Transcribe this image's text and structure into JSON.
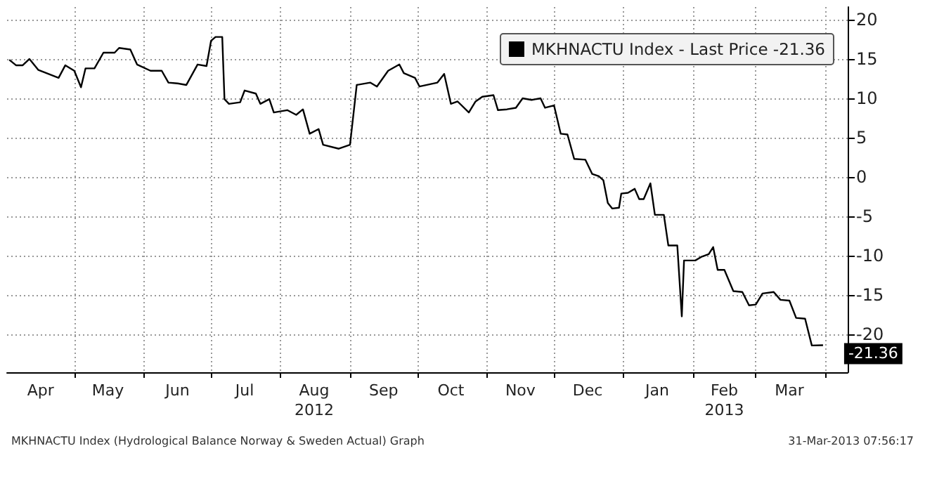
{
  "chart_data": {
    "type": "line",
    "x": [
      "2012-04-02",
      "2012-04-05",
      "2012-04-08",
      "2012-04-11",
      "2012-04-15",
      "2012-04-24",
      "2012-04-27",
      "2012-05-01",
      "2012-05-04",
      "2012-05-06",
      "2012-05-10",
      "2012-05-14",
      "2012-05-19",
      "2012-05-21",
      "2012-05-26",
      "2012-05-29",
      "2012-06-04",
      "2012-06-09",
      "2012-06-12",
      "2012-06-16",
      "2012-06-20",
      "2012-06-25",
      "2012-06-29",
      "2012-07-01",
      "2012-07-03",
      "2012-07-06",
      "2012-07-07",
      "2012-07-09",
      "2012-07-14",
      "2012-07-16",
      "2012-07-21",
      "2012-07-23",
      "2012-07-27",
      "2012-07-29",
      "2012-08-04",
      "2012-08-08",
      "2012-08-11",
      "2012-08-14",
      "2012-08-18",
      "2012-08-20",
      "2012-08-27",
      "2012-09-01",
      "2012-09-04",
      "2012-09-10",
      "2012-09-13",
      "2012-09-18",
      "2012-09-23",
      "2012-09-25",
      "2012-09-30",
      "2012-10-02",
      "2012-10-10",
      "2012-10-13",
      "2012-10-16",
      "2012-10-19",
      "2012-10-24",
      "2012-10-27",
      "2012-10-30",
      "2012-11-04",
      "2012-11-06",
      "2012-11-10",
      "2012-11-14",
      "2012-11-17",
      "2012-11-21",
      "2012-11-25",
      "2012-11-27",
      "2012-12-01",
      "2012-12-04",
      "2012-12-07",
      "2012-12-10",
      "2012-12-15",
      "2012-12-18",
      "2012-12-21",
      "2012-12-23",
      "2012-12-25",
      "2012-12-27",
      "2012-12-30",
      "2012-12-31",
      "2013-01-03",
      "2013-01-06",
      "2013-01-08",
      "2013-01-10",
      "2013-01-13",
      "2013-01-15",
      "2013-01-19",
      "2013-01-21",
      "2013-01-25",
      "2013-01-27",
      "2013-01-28",
      "2013-02-02",
      "2013-02-05",
      "2013-02-08",
      "2013-02-10",
      "2013-02-12",
      "2013-02-15",
      "2013-02-19",
      "2013-02-23",
      "2013-02-26",
      "2013-03-01",
      "2013-03-04",
      "2013-03-09",
      "2013-03-12",
      "2013-03-16",
      "2013-03-19",
      "2013-03-23",
      "2013-03-26",
      "2013-03-31"
    ],
    "series": [
      {
        "name": "MKHNACTU Index - Last Price -21.36",
        "color": "#000000",
        "values": [
          14.9,
          14.2,
          14.2,
          15.0,
          13.6,
          12.6,
          14.2,
          13.5,
          11.4,
          13.8,
          13.8,
          15.8,
          15.8,
          16.4,
          16.2,
          14.3,
          13.5,
          13.5,
          12.0,
          11.9,
          11.7,
          14.3,
          14.1,
          17.3,
          17.8,
          17.8,
          9.9,
          9.3,
          9.5,
          11.0,
          10.6,
          9.3,
          9.9,
          8.2,
          8.5,
          7.9,
          8.6,
          5.5,
          6.1,
          4.1,
          3.6,
          4.1,
          11.7,
          12.0,
          11.5,
          13.5,
          14.3,
          13.2,
          12.6,
          11.5,
          12.0,
          13.1,
          9.3,
          9.6,
          8.2,
          9.6,
          10.2,
          10.4,
          8.5,
          8.6,
          8.8,
          10.0,
          9.8,
          10.0,
          8.8,
          9.1,
          5.5,
          5.4,
          2.3,
          2.2,
          0.4,
          0.1,
          -0.4,
          -3.3,
          -4.0,
          -3.9,
          -2.1,
          -2.0,
          -1.5,
          -2.8,
          -2.8,
          -0.8,
          -4.8,
          -4.8,
          -8.7,
          -8.7,
          -17.7,
          -10.6,
          -10.6,
          -10.1,
          -9.8,
          -8.9,
          -11.8,
          -11.8,
          -14.5,
          -14.6,
          -16.3,
          -16.2,
          -14.8,
          -14.6,
          -15.6,
          -15.7,
          -17.9,
          -18.0,
          -21.4,
          -21.36
        ],
        "value_labels": [
          null,
          null,
          null,
          null,
          null,
          null,
          null,
          null,
          null,
          null,
          null,
          null,
          null,
          null,
          null,
          null,
          null,
          null,
          null,
          null,
          null,
          null,
          null,
          null,
          null,
          null,
          null,
          null,
          null,
          null,
          null,
          null,
          null,
          null,
          null,
          null,
          null,
          null,
          null,
          null,
          null,
          null,
          null,
          null,
          null,
          null,
          null,
          null,
          null,
          null,
          null,
          null,
          null,
          null,
          null,
          null,
          null,
          null,
          null,
          null,
          null,
          null,
          null,
          null,
          null,
          null,
          null,
          null,
          null,
          null,
          null,
          null,
          null,
          null,
          null,
          null,
          null,
          null,
          null,
          null,
          null,
          null,
          null,
          null,
          null,
          null,
          null,
          null,
          null,
          null,
          null,
          null,
          null,
          null,
          null,
          null,
          null,
          null,
          null,
          null,
          null,
          null,
          null,
          null,
          null,
          "-21.36"
        ]
      }
    ],
    "xlim": [
      "2012-04-01",
      "2013-04-11"
    ],
    "xticks": [
      {
        "value": "2012-04-16",
        "label": "Apr"
      },
      {
        "value": "2012-05-01",
        "label": null
      },
      {
        "value": "2012-05-16",
        "label": "May"
      },
      {
        "value": "2012-06-01",
        "label": null
      },
      {
        "value": "2012-06-16",
        "label": "Jun"
      },
      {
        "value": "2012-07-01",
        "label": null
      },
      {
        "value": "2012-07-16",
        "label": "Jul"
      },
      {
        "value": "2012-08-01",
        "label": null
      },
      {
        "value": "2012-08-16",
        "label": "Aug\n2012"
      },
      {
        "value": "2012-09-01",
        "label": null
      },
      {
        "value": "2012-09-16",
        "label": "Sep"
      },
      {
        "value": "2012-10-01",
        "label": null
      },
      {
        "value": "2012-10-16",
        "label": "Oct"
      },
      {
        "value": "2012-11-01",
        "label": null
      },
      {
        "value": "2012-11-16",
        "label": "Nov"
      },
      {
        "value": "2012-12-01",
        "label": null
      },
      {
        "value": "2012-12-16",
        "label": "Dec"
      },
      {
        "value": "2013-01-01",
        "label": null
      },
      {
        "value": "2013-01-16",
        "label": "Jan"
      },
      {
        "value": "2013-02-01",
        "label": null
      },
      {
        "value": "2013-02-15",
        "label": "Feb\n2013"
      },
      {
        "value": "2013-03-01",
        "label": null
      },
      {
        "value": "2013-03-16",
        "label": "Mar"
      },
      {
        "value": "2013-04-01",
        "label": null
      }
    ],
    "ylim": [
      -24.8,
      21.6
    ],
    "yticks": [
      -20,
      -15,
      -10,
      -5,
      0,
      5,
      10,
      15,
      20
    ],
    "grid": true,
    "legend": "top right",
    "marker": "none",
    "line_style": "solid",
    "annotations": [
      "MKHNACTU Index (Hydrological Balance Norway & Sweden Actual) Graph",
      "31-Mar-2013 07:56:17"
    ]
  }
}
